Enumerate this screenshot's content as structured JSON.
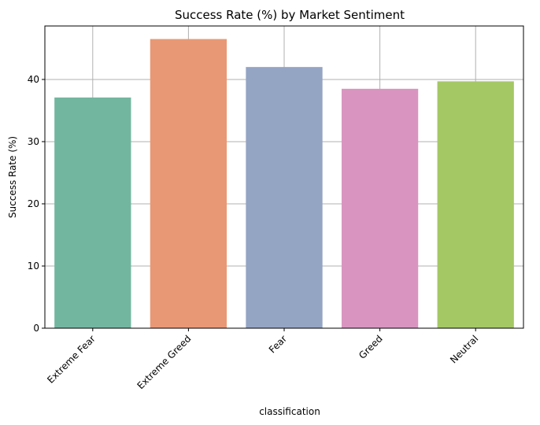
{
  "chart_data": {
    "type": "bar",
    "title": "Success Rate (%) by Market Sentiment",
    "xlabel": "classification",
    "ylabel": "Success Rate (%)",
    "categories": [
      "Extreme Fear",
      "Extreme Greed",
      "Fear",
      "Greed",
      "Neutral"
    ],
    "values": [
      37.1,
      46.5,
      42.0,
      38.5,
      39.7
    ],
    "colors": [
      "#72b6a0",
      "#e99875",
      "#94a4c3",
      "#d995c0",
      "#a4c864"
    ],
    "ylim": [
      0,
      48.6
    ],
    "yticks": [
      0,
      10,
      20,
      30,
      40
    ],
    "grid": true,
    "legend": "none"
  }
}
